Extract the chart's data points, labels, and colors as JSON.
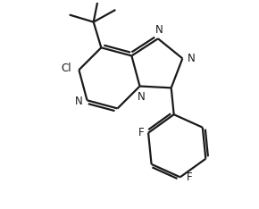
{
  "bg_color": "#ffffff",
  "line_color": "#1a1a1a",
  "line_width": 1.6,
  "font_size": 8.5,
  "figsize": [
    2.9,
    2.34
  ],
  "dpi": 100,
  "xlim": [
    0,
    10
  ],
  "ylim": [
    0,
    8.1
  ]
}
